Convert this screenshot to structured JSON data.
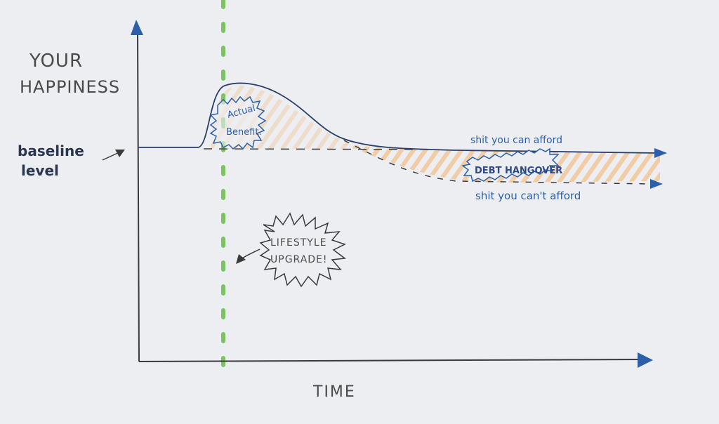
{
  "labels": {
    "y_axis_line1": "YOUR",
    "y_axis_line2": "HAPPINESS",
    "x_axis": "TIME",
    "baseline_line1": "baseline",
    "baseline_line2": "level",
    "benefit_line1": "Actual",
    "benefit_line2": "Benefit.",
    "afford": "shit you can afford",
    "cant_afford": "shit you can't afford",
    "debt": "DEBT HANGOVER",
    "upgrade_line1": "LIFESTYLE",
    "upgrade_line2": "UPGRADE!"
  },
  "colors": {
    "ink": "#3a3a3a",
    "blue": "#2c5fa8",
    "green": "#7cc460",
    "hatch": "#f2c391",
    "paper": "#eceef2"
  }
}
